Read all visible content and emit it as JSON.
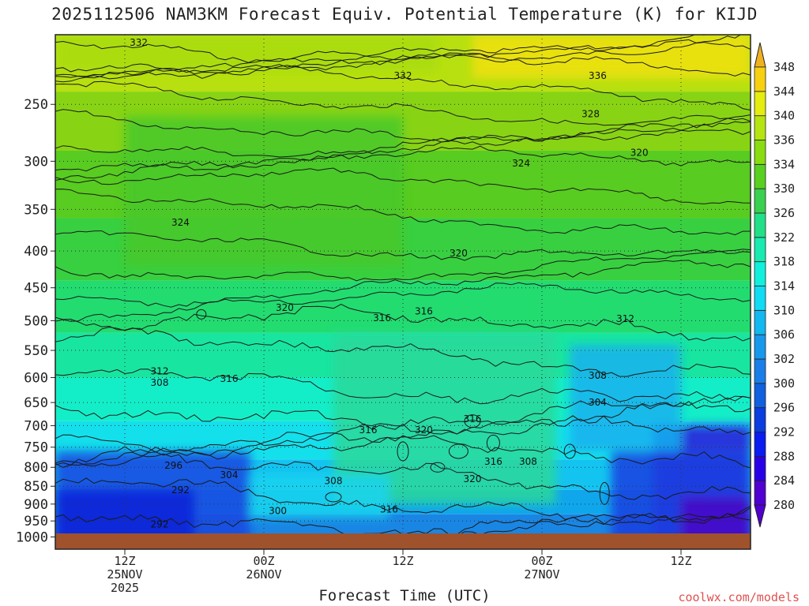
{
  "chart_data": {
    "type": "heatmap",
    "title": "2025112506 NAM3KM Forecast Equiv. Potential Temperature (K) for KIJD",
    "xlabel": "Forecast Time (UTC)",
    "ylabel": "",
    "y_scale": "log-pressure (inverted)",
    "y_ticks": [
      250,
      300,
      350,
      400,
      450,
      500,
      550,
      600,
      650,
      700,
      750,
      800,
      850,
      900,
      950,
      1000
    ],
    "ylim": [
      1000,
      200
    ],
    "x_ticks": [
      {
        "line1": "12Z",
        "line2": "25NOV",
        "line3": "2025"
      },
      {
        "line1": "00Z",
        "line2": "26NOV",
        "line3": ""
      },
      {
        "line1": "12Z",
        "line2": "",
        "line3": ""
      },
      {
        "line1": "00Z",
        "line2": "27NOV",
        "line3": ""
      },
      {
        "line1": "12Z",
        "line2": "",
        "line3": ""
      }
    ],
    "grid": true,
    "colorbar_levels": [
      280,
      284,
      288,
      292,
      296,
      300,
      302,
      306,
      310,
      314,
      318,
      322,
      326,
      330,
      334,
      336,
      340,
      344,
      348
    ],
    "colorbar_colors": [
      "#5000d0",
      "#2800e8",
      "#0a1cf0",
      "#0a3ee0",
      "#1060e0",
      "#1a7ee8",
      "#1898ec",
      "#12b8f0",
      "#10dcf4",
      "#10f0dc",
      "#18eab0",
      "#22e088",
      "#3ad050",
      "#58d020",
      "#88dc10",
      "#b6e410",
      "#e4ec10",
      "#f8d010",
      "#f0b020"
    ],
    "contour_labels": [
      {
        "text": "332",
        "t": 0.12,
        "p": 205
      },
      {
        "text": "332",
        "t": 0.5,
        "p": 228
      },
      {
        "text": "336",
        "t": 0.78,
        "p": 228
      },
      {
        "text": "328",
        "t": 0.77,
        "p": 258
      },
      {
        "text": "324",
        "t": 0.67,
        "p": 302
      },
      {
        "text": "320",
        "t": 0.84,
        "p": 292
      },
      {
        "text": "324",
        "t": 0.18,
        "p": 365
      },
      {
        "text": "320",
        "t": 0.58,
        "p": 403
      },
      {
        "text": "320",
        "t": 0.33,
        "p": 480
      },
      {
        "text": "316",
        "t": 0.47,
        "p": 496
      },
      {
        "text": "316",
        "t": 0.53,
        "p": 485
      },
      {
        "text": "312",
        "t": 0.82,
        "p": 497
      },
      {
        "text": "312",
        "t": 0.15,
        "p": 588
      },
      {
        "text": "308",
        "t": 0.15,
        "p": 610
      },
      {
        "text": "316",
        "t": 0.25,
        "p": 602
      },
      {
        "text": "308",
        "t": 0.78,
        "p": 596
      },
      {
        "text": "304",
        "t": 0.78,
        "p": 650
      },
      {
        "text": "316",
        "t": 0.45,
        "p": 710
      },
      {
        "text": "320",
        "t": 0.53,
        "p": 710
      },
      {
        "text": "316",
        "t": 0.6,
        "p": 685
      },
      {
        "text": "316",
        "t": 0.63,
        "p": 785
      },
      {
        "text": "308",
        "t": 0.68,
        "p": 785
      },
      {
        "text": "320",
        "t": 0.6,
        "p": 830
      },
      {
        "text": "296",
        "t": 0.17,
        "p": 795
      },
      {
        "text": "304",
        "t": 0.25,
        "p": 820
      },
      {
        "text": "292",
        "t": 0.18,
        "p": 860
      },
      {
        "text": "308",
        "t": 0.4,
        "p": 836
      },
      {
        "text": "300",
        "t": 0.32,
        "p": 920
      },
      {
        "text": "316",
        "t": 0.48,
        "p": 915
      },
      {
        "text": "292",
        "t": 0.15,
        "p": 960
      }
    ]
  },
  "credit": "coolwx.com/models"
}
